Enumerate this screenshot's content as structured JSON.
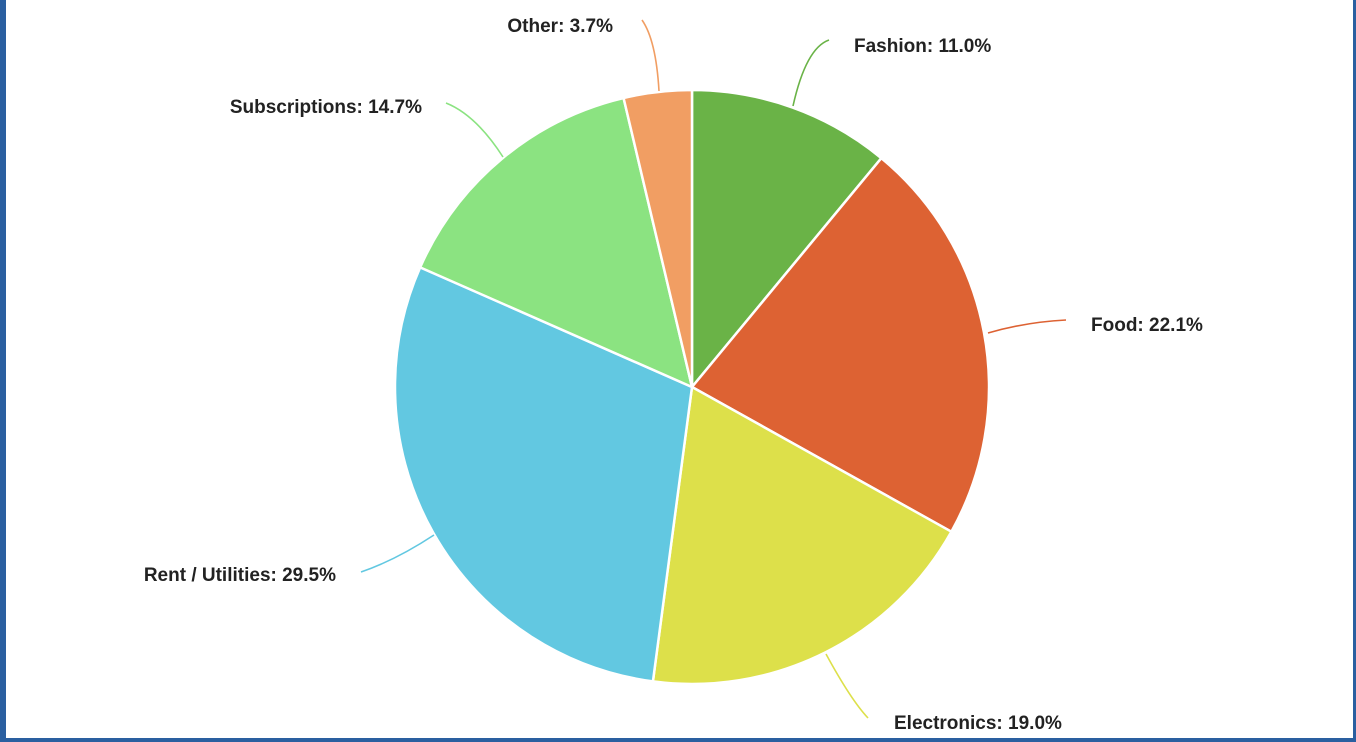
{
  "chart_data": {
    "type": "pie",
    "slices": [
      {
        "name": "Fashion",
        "value": 11.0,
        "label": "Fashion: 11.0%",
        "color": "#6ab347"
      },
      {
        "name": "Food",
        "value": 22.1,
        "label": "Food: 22.1%",
        "color": "#dd6233"
      },
      {
        "name": "Electronics",
        "value": 19.0,
        "label": "Electronics: 19.0%",
        "color": "#dde04a"
      },
      {
        "name": "Rent / Utilities",
        "value": 29.5,
        "label": "Rent / Utilities: 29.5%",
        "color": "#62c8e1"
      },
      {
        "name": "Subscriptions",
        "value": 14.7,
        "label": "Subscriptions: 14.7%",
        "color": "#8be381"
      },
      {
        "name": "Other",
        "value": 3.7,
        "label": "Other: 3.7%",
        "color": "#f19e63"
      }
    ],
    "start_angle": "12 o'clock",
    "direction": "clockwise",
    "legend": "none",
    "labels": "outside with leader lines"
  }
}
